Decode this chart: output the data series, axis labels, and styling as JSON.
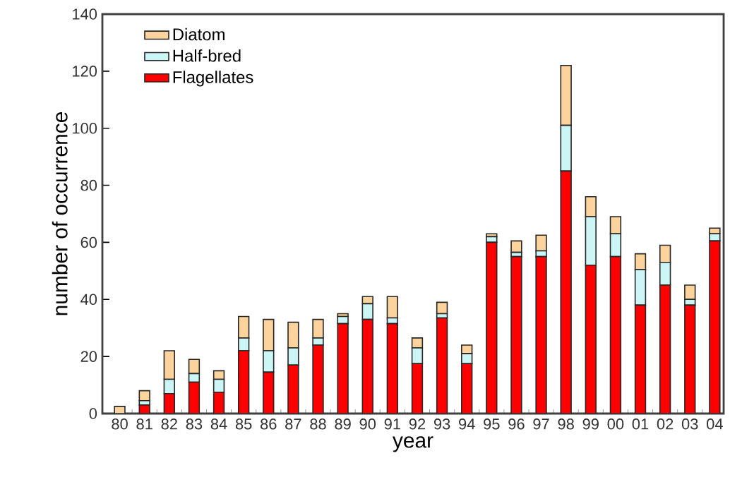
{
  "chart_data": {
    "type": "bar",
    "stacked": true,
    "xlabel": "year",
    "ylabel": "number of occurrence",
    "categories": [
      "80",
      "81",
      "82",
      "83",
      "84",
      "85",
      "86",
      "87",
      "88",
      "89",
      "90",
      "91",
      "92",
      "93",
      "94",
      "95",
      "96",
      "97",
      "98",
      "99",
      "00",
      "01",
      "02",
      "03",
      "04"
    ],
    "series": [
      {
        "name": "Flagellates",
        "color": "#ff0000",
        "values": [
          0,
          3,
          7,
          11,
          7.5,
          22,
          14.5,
          17,
          24,
          31.5,
          33,
          31.5,
          17.5,
          33.5,
          17.5,
          60,
          55,
          55,
          85,
          52,
          55,
          38,
          45,
          38,
          60.5
        ]
      },
      {
        "name": "Half-bred",
        "color": "#ccf5f5",
        "values": [
          0,
          1.5,
          5,
          3,
          4.5,
          4.5,
          7.5,
          6,
          2.5,
          2.5,
          5.5,
          2,
          5.5,
          1.5,
          3.5,
          2,
          1.5,
          2,
          16,
          17,
          8,
          12.5,
          8,
          2,
          2.5
        ]
      },
      {
        "name": "Diatom",
        "color": "#fcd39c",
        "values": [
          2.5,
          3.5,
          10,
          5,
          3,
          7.5,
          11,
          9,
          6.5,
          1,
          2.5,
          7.5,
          3.5,
          4,
          3,
          1,
          4,
          5.5,
          21,
          7,
          6,
          5.5,
          6,
          5,
          2
        ]
      }
    ],
    "ylim": [
      0,
      140
    ],
    "yticks": [
      0,
      20,
      40,
      60,
      80,
      100,
      120,
      140
    ],
    "legend": "top left",
    "grid": false
  }
}
